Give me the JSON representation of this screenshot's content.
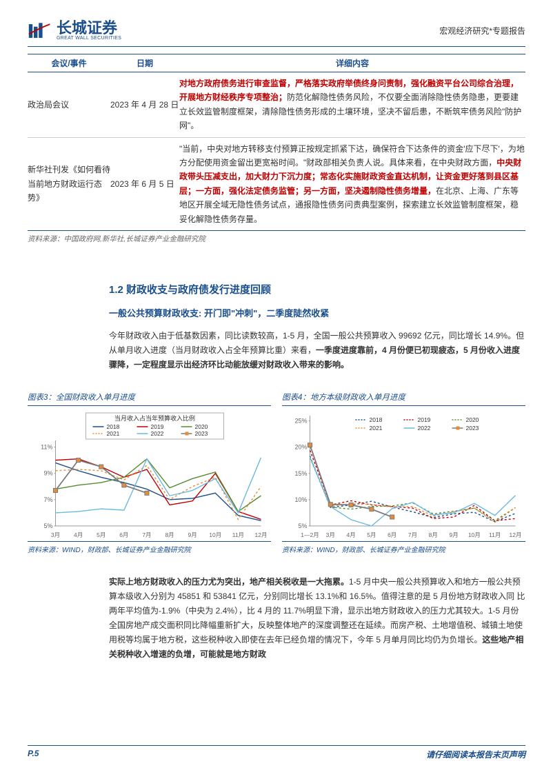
{
  "header": {
    "logo_cn": "长城证券",
    "logo_en": "GREAT WALL SECURITIES",
    "right": "宏观经济研究*专题报告"
  },
  "table": {
    "head": {
      "c1": "会议/事件",
      "c2": "日期",
      "c3": "详细内容"
    },
    "rows": [
      {
        "c1": "政治局会议",
        "c2": "2023 年 4 月 28 日",
        "c3_red": "对地方政府债务进行审查监督，严格落实政府举债终身问责制，强化融资平台公司综合治理，开展地方财经秩序专项整治；",
        "c3_rest": "防范化解隐性债务风险，不仅要全面消除隐性债务隐患，更要建立长效监管制度框架，清除隐性债务形成的土壤环境，坚决不留后患，不断筑牢债务风险\"防护网\"。"
      },
      {
        "c1": "新华社刊发《如何看待当前地方财政运行态势》",
        "c2": "2023 年 6 月 5 日",
        "c3_pre": "\"当前，中央对地方转移支付预算正按规定抓紧下达，确保符合下达条件的资金'应下尽下'，为地方分配使用资金留出更宽裕时间。\"财政部相关负责人说。具体来看，在中央财政方面，",
        "c3_red1": "中央财政带头压减支出，加大财力下沉力度；常态化实施财政资金直达机制，让资金更好落到县区基层；一方面，强化法定债务监管；另一方面，坚决遏制隐性债务增量，",
        "c3_post": "在北京、上海、广东等地区开展全域无隐性债务试点，通报隐性债务问责典型案例，探索建立长效监管制度框架，稳妥化解隐性债务存量。"
      }
    ],
    "source": "资料来源：中国政府网,新华社,长城证券产业金融研究院"
  },
  "section": {
    "title": "1.2 财政收支与政府债发行进度回顾",
    "sub": "一般公共预算财政收支: 开门即\"冲刺\"，二季度陡然收紧",
    "p1_a": "今年财政收入由于低基数因素，同比读数较高，1-5 月，全国一般公共预算收入 99692 亿元，同比增长 14.9%。但从单月收入进度（当月财政收入占全年预算比重）来看，",
    "p1_b": "一季度进度靠前，4 月份便已初现疲态，5 月份收入进度骤降，一定程度显示出经济环比动能放缓对财政收入带来的影响。"
  },
  "chart3": {
    "title": "图表3：全国财政收入单月进度",
    "type": "line",
    "legend_title": "当月收入占当年预算收入比例",
    "months": [
      "3月",
      "4月",
      "5月",
      "6月",
      "7月",
      "8月",
      "9月",
      "10月",
      "11月",
      "12月"
    ],
    "ylim": [
      5,
      11.5
    ],
    "yticks": [
      5,
      7,
      9,
      11
    ],
    "ytick_labels": [
      "5%",
      "7%",
      "9%",
      "11%"
    ],
    "series": {
      "2018": [
        9.8,
        9.2,
        8.7,
        8.3,
        7.8,
        7.0,
        7.1,
        7.5,
        5.8,
        5.4
      ],
      "2019": [
        10.0,
        10.1,
        9.5,
        8.7,
        9.3,
        6.6,
        6.9,
        9.0,
        6.1,
        5.5
      ],
      "2020": [
        7.8,
        8.1,
        8.3,
        8.7,
        10.1,
        7.9,
        8.6,
        9.1,
        6.1,
        7.3
      ],
      "2021": [
        9.2,
        9.3,
        9.2,
        8.5,
        9.6,
        7.0,
        8.0,
        8.7,
        5.5,
        8.0
      ],
      "2022": [
        6.0,
        6.1,
        6.3,
        6.2,
        10.1,
        7.3,
        7.7,
        8.6,
        6.0,
        10.2
      ],
      "2023": [
        7.7,
        10.0,
        9.5,
        8.1,
        7.5
      ]
    },
    "colors": {
      "2018": "#1a4e8c",
      "2019": "#c00000",
      "2020": "#558b2f",
      "2021": "#e58b3a",
      "2022": "#6bb8e0",
      "2023": "#7a7a7a"
    },
    "styles": {
      "2018": "solid",
      "2019": "solid",
      "2020": "solid",
      "2021": "dotted",
      "2022": "solid",
      "2023": "marker"
    },
    "marker_color_2023": "#e58b3a",
    "source": "资料来源：WIND，财政部、长城证券产业金融研究院"
  },
  "chart4": {
    "title": "图表4：地方本级财政收入单月进度",
    "type": "line",
    "months": [
      "1—2月",
      "3月",
      "4月",
      "5月",
      "6月",
      "7月",
      "8月",
      "9月",
      "10月",
      "11月",
      "12月"
    ],
    "ylim": [
      5,
      26
    ],
    "yticks": [
      5,
      10,
      15,
      20,
      25
    ],
    "ytick_labels": [
      "5%",
      "10%",
      "15%",
      "20%",
      "25%"
    ],
    "series": {
      "2018": [
        18.3,
        8.5,
        9.0,
        9.7,
        8.6,
        7.7,
        6.6,
        7.3,
        7.6,
        5.8,
        7.4
      ],
      "2019": [
        19.4,
        9.0,
        9.8,
        9.0,
        8.7,
        8.4,
        6.4,
        6.7,
        8.9,
        6.0,
        6.4
      ],
      "2020": [
        18.0,
        8.6,
        8.2,
        8.7,
        8.8,
        9.4,
        7.3,
        7.8,
        8.4,
        6.0,
        8.5
      ],
      "2021": [
        20.4,
        8.8,
        9.2,
        9.1,
        8.6,
        8.7,
        6.9,
        7.7,
        8.4,
        5.7,
        8.5
      ],
      "2022": [
        18.1,
        8.7,
        6.2,
        5.0,
        8.3,
        9.5,
        7.1,
        7.5,
        9.3,
        7.0,
        10.8
      ],
      "2023": [
        20.4,
        9.1,
        9.0,
        8.2,
        6.7
      ]
    },
    "colors": {
      "2018": "#1a4e8c",
      "2019": "#c00000",
      "2020": "#558b2f",
      "2021": "#e58b3a",
      "2022": "#6bb8e0",
      "2023": "#7a7a7a"
    },
    "styles": {
      "2018": "dotted",
      "2019": "dotted",
      "2020": "dotted",
      "2021": "dotted",
      "2022": "solid",
      "2023": "marker"
    },
    "marker_color_2023": "#e58b3a",
    "source": "资料来源：WIND，财政部、长城证券产业金融研究院"
  },
  "para2": {
    "b1": "实际上地方财政收入的压力尤为突出，地产相关税收是一大拖累。",
    "t1": "1-5 月中央一般公共预算收入和地方一般公共预算本级收入分别为 45851 和 53841 亿元，分别同比增长 13.1%和 16.5%。值得注意的是 5 月份地方财政收入同 比两年平均值为-1.9%（中央为 2.4%），比 4 月的 11.7%明显下滑，显示出地方财政收入的压力尤其较大。1-5 月份全国房地产成交面积同比降幅重新扩大，反映整体地产的深度调整还在延续。而房产税、土地增值税、城镇土地使用税等均属于地方税，这些税种收入即使在去年已经负增的情况下，今年 5 月单月同比均仍为负增长。",
    "b2": "这些地产相关税种收入增速的负增，可能就是地方财政"
  },
  "footer": {
    "left": "P.5",
    "right": "请仔细阅读本报告末页声明"
  }
}
